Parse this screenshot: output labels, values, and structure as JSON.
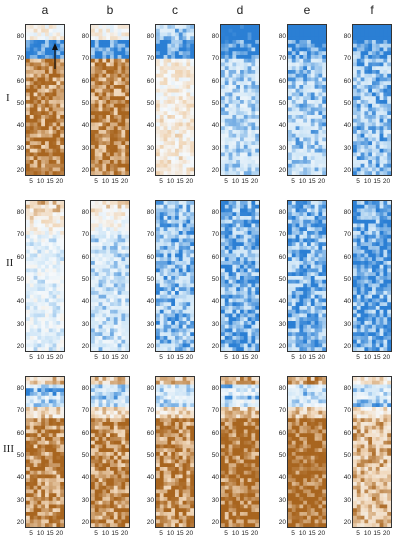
{
  "columns": [
    "a",
    "b",
    "c",
    "d",
    "e",
    "f"
  ],
  "rows": [
    {
      "label": "I",
      "palette": [
        1,
        1,
        0.2,
        -0.6,
        -0.7,
        -0.8
      ]
    },
    {
      "label": "II",
      "palette": [
        -0.3,
        -0.5,
        -0.8,
        -0.9,
        -0.9,
        -1
      ]
    },
    {
      "label": "III",
      "palette": [
        1,
        1,
        1,
        1.1,
        1.2,
        0.7
      ]
    }
  ],
  "y_ticks": [
    "80",
    "70",
    "60",
    "50",
    "40",
    "30",
    "20"
  ],
  "x_ticks": [
    "5",
    "10",
    "15",
    "20"
  ],
  "colors": {
    "blue_dark": "#2b7fd4",
    "blue_light": "#cfe6f7",
    "white": "#f6f9fb",
    "brown_light": "#f0d6b8",
    "brown_dark": "#a8651f",
    "frame": "#333333"
  },
  "arrow_direction": "up"
}
